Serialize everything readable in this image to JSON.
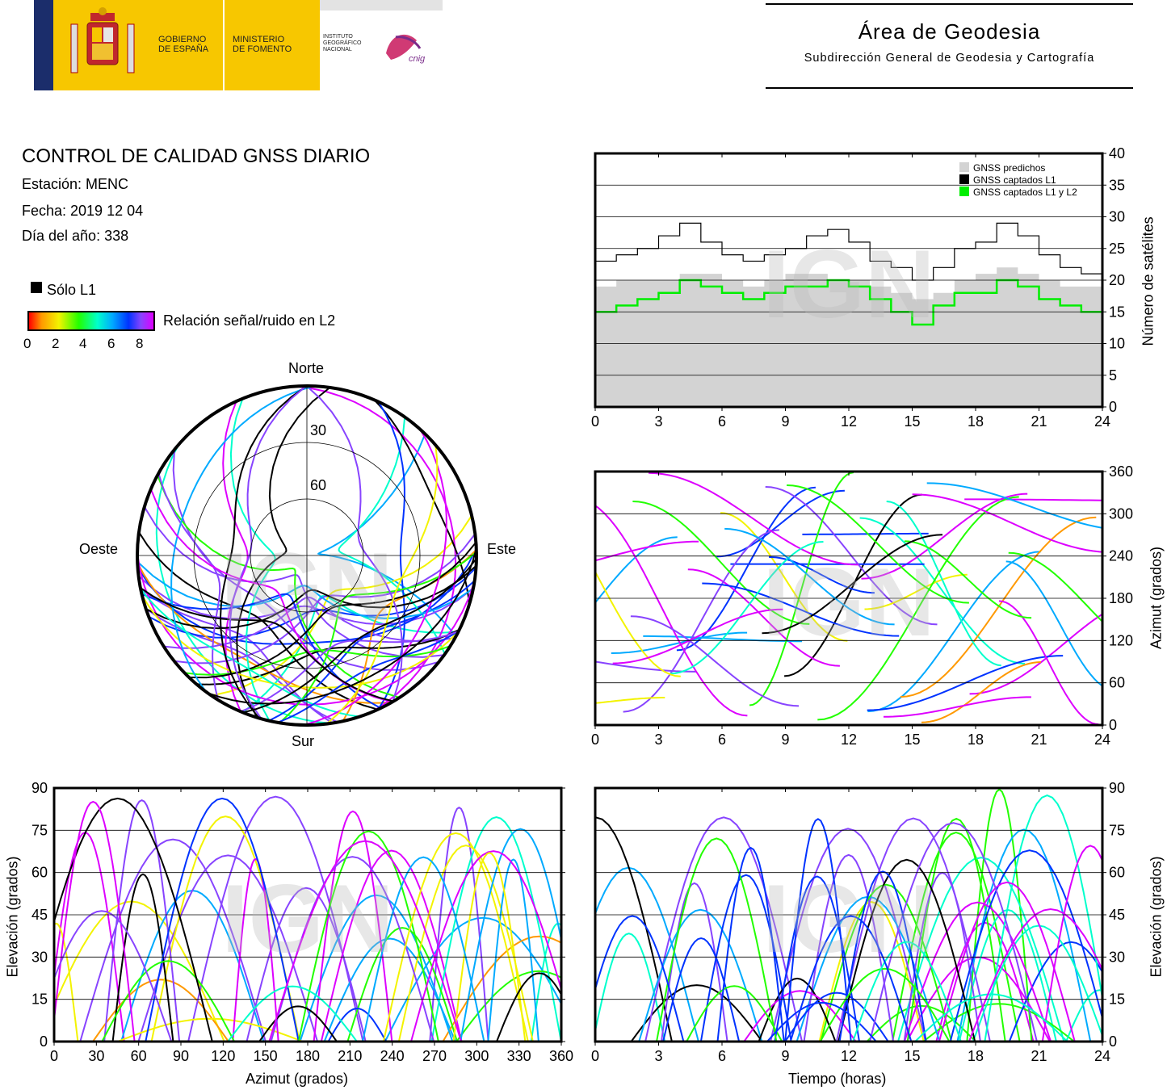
{
  "header": {
    "gobierno": [
      "GOBIERNO",
      "DE ESPAÑA"
    ],
    "ministerio": [
      "MINISTERIO",
      "DE FOMENTO"
    ],
    "instituto": [
      "INSTITUTO",
      "GEOGRÁFICO",
      "NACIONAL"
    ],
    "cnig": "cnig",
    "area_title": "Área de Geodesia",
    "area_subtitle": "Subdirección General de Geodesia y Cartografía"
  },
  "info": {
    "title": "CONTROL DE CALIDAD GNSS DIARIO",
    "station": "Estación: MENC",
    "date": "Fecha: 2019 12 04",
    "doy": "Día del año: 338"
  },
  "legend": {
    "l1_only": "Sólo L1",
    "snr_label": "Relación señal/ruido en L2",
    "snr_ticks": [
      "0",
      "2",
      "4",
      "6",
      "8"
    ],
    "colors": [
      "#ff0000",
      "#ff9900",
      "#f3f300",
      "#22ff00",
      "#00ffcc",
      "#00aaff",
      "#0033ff",
      "#8844ff",
      "#dd00ff"
    ]
  },
  "watermark": "IGN",
  "chart_data": [
    {
      "type": "line",
      "id": "satellite-count",
      "ylabel": "Número de satélites",
      "xlim": [
        0,
        24
      ],
      "ylim": [
        0,
        40
      ],
      "xticks": [
        0,
        3,
        6,
        9,
        12,
        15,
        18,
        21,
        24
      ],
      "yticks": [
        0,
        5,
        10,
        15,
        20,
        25,
        30,
        35,
        40
      ],
      "grid": true,
      "legend_position": "top-right",
      "series": [
        {
          "name": "GNSS predichos",
          "color": "#d3d3d3",
          "x": [
            0,
            1,
            2,
            3,
            4,
            5,
            6,
            7,
            8,
            9,
            10,
            11,
            12,
            13,
            14,
            15,
            16,
            17,
            18,
            19,
            20,
            21,
            22,
            23,
            24
          ],
          "values": [
            19,
            20,
            20,
            20,
            21,
            21,
            20,
            19,
            20,
            21,
            21,
            20,
            20,
            19,
            18,
            17,
            18,
            20,
            21,
            22,
            21,
            20,
            19,
            19,
            19
          ]
        },
        {
          "name": "GNSS captados L1",
          "color": "#000000",
          "x": [
            0,
            1,
            2,
            3,
            4,
            5,
            6,
            7,
            8,
            9,
            10,
            11,
            12,
            13,
            14,
            15,
            16,
            17,
            18,
            19,
            20,
            21,
            22,
            23,
            24
          ],
          "values": [
            23,
            24,
            25,
            27,
            29,
            26,
            24,
            23,
            24,
            25,
            27,
            28,
            26,
            23,
            22,
            20,
            22,
            25,
            26,
            29,
            27,
            24,
            22,
            21,
            22
          ]
        },
        {
          "name": "GNSS captados L1 y L2",
          "color": "#00ee00",
          "x": [
            0,
            1,
            2,
            3,
            4,
            5,
            6,
            7,
            8,
            9,
            10,
            11,
            12,
            13,
            14,
            15,
            16,
            17,
            18,
            19,
            20,
            21,
            22,
            23,
            24
          ],
          "values": [
            15,
            16,
            17,
            18,
            20,
            19,
            18,
            17,
            18,
            19,
            19,
            20,
            19,
            17,
            15,
            13,
            16,
            18,
            18,
            20,
            19,
            17,
            16,
            15,
            15
          ]
        }
      ]
    },
    {
      "type": "scatter",
      "id": "azimuth-time",
      "ylabel": "Azimut (grados)",
      "xlim": [
        0,
        24
      ],
      "ylim": [
        0,
        360
      ],
      "xticks": [
        0,
        3,
        6,
        9,
        12,
        15,
        18,
        21,
        24
      ],
      "yticks": [
        0,
        60,
        120,
        180,
        240,
        300,
        360
      ],
      "grid": true
    },
    {
      "type": "scatter",
      "id": "elevation-azimuth",
      "xlabel": "Azimut (grados)",
      "ylabel": "Elevación (grados)",
      "xlim": [
        0,
        360
      ],
      "ylim": [
        0,
        90
      ],
      "xticks": [
        0,
        30,
        60,
        90,
        120,
        150,
        180,
        210,
        240,
        270,
        300,
        330,
        360
      ],
      "yticks": [
        0,
        15,
        30,
        45,
        60,
        75,
        90
      ],
      "grid": true
    },
    {
      "type": "scatter",
      "id": "elevation-time",
      "xlabel": "Tiempo (horas)",
      "ylabel": "Elevación (grados)",
      "xlim": [
        0,
        24
      ],
      "ylim": [
        0,
        90
      ],
      "xticks": [
        0,
        3,
        6,
        9,
        12,
        15,
        18,
        21,
        24
      ],
      "yticks": [
        0,
        15,
        30,
        45,
        60,
        75,
        90
      ],
      "grid": true
    },
    {
      "type": "scatter",
      "id": "skyplot",
      "directions": {
        "north": "Norte",
        "south": "Sur",
        "east": "Este",
        "west": "Oeste"
      },
      "rings": [
        "30",
        "60"
      ]
    }
  ]
}
